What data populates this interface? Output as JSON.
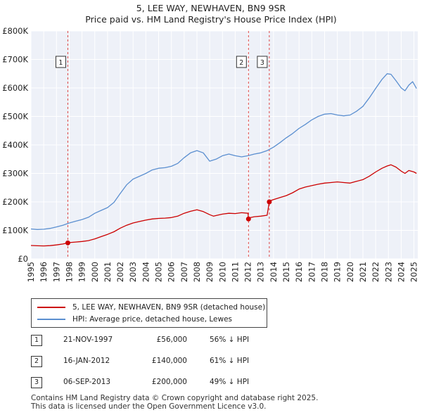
{
  "chart_data": {
    "type": "line",
    "title": "5, LEE WAY, NEWHAVEN, BN9 9SR",
    "subtitle": "Price paid vs. HM Land Registry's House Price Index (HPI)",
    "xlabel": "",
    "ylabel": "",
    "xlim": [
      1995,
      2025.3
    ],
    "ylim": [
      0,
      800000
    ],
    "y_ticks": [
      0,
      100000,
      200000,
      300000,
      400000,
      500000,
      600000,
      700000,
      800000
    ],
    "y_tick_labels": [
      "£0",
      "£100K",
      "£200K",
      "£300K",
      "£400K",
      "£500K",
      "£600K",
      "£700K",
      "£800K"
    ],
    "x_tick_labels": [
      "1995",
      "1996",
      "1997",
      "1998",
      "1999",
      "2000",
      "2001",
      "2002",
      "2003",
      "2004",
      "2005",
      "2006",
      "2007",
      "2008",
      "2009",
      "2010",
      "2011",
      "2012",
      "2013",
      "2014",
      "2015",
      "2016",
      "2017",
      "2018",
      "2019",
      "2020",
      "2021",
      "2022",
      "2023",
      "2024",
      "2025"
    ],
    "grid": true,
    "series": [
      {
        "name": "5, LEE WAY, NEWHAVEN, BN9 9SR (detached house)",
        "color": "#cc0000",
        "x": [
          1995.0,
          1995.5,
          1996.0,
          1996.5,
          1997.0,
          1997.5,
          1997.89,
          1998.0,
          1998.5,
          1999.0,
          1999.5,
          2000.0,
          2000.5,
          2001.0,
          2001.5,
          2002.0,
          2002.5,
          2003.0,
          2003.5,
          2004.0,
          2004.5,
          2005.0,
          2005.5,
          2006.0,
          2006.5,
          2007.0,
          2007.5,
          2008.0,
          2008.5,
          2009.0,
          2009.3,
          2009.6,
          2010.0,
          2010.5,
          2011.0,
          2011.5,
          2012.0,
          2012.04,
          2012.2,
          2012.5,
          2013.0,
          2013.5,
          2013.67,
          2013.8,
          2014.0,
          2014.5,
          2015.0,
          2015.5,
          2016.0,
          2016.5,
          2017.0,
          2017.5,
          2018.0,
          2018.5,
          2019.0,
          2019.5,
          2020.0,
          2020.5,
          2021.0,
          2021.5,
          2022.0,
          2022.5,
          2022.9,
          2023.2,
          2023.6,
          2024.0,
          2024.3,
          2024.6,
          2025.0,
          2025.2
        ],
        "values": [
          47000,
          46000,
          45500,
          46500,
          49000,
          52000,
          56000,
          57000,
          59000,
          61000,
          64000,
          70000,
          78000,
          86000,
          95000,
          108000,
          118000,
          126000,
          131000,
          136000,
          140000,
          142000,
          143000,
          145000,
          150000,
          160000,
          167000,
          172000,
          166000,
          155000,
          150000,
          153000,
          157000,
          160000,
          159000,
          162000,
          160000,
          140000,
          145000,
          148000,
          150000,
          153000,
          200000,
          205000,
          208000,
          215000,
          222000,
          232000,
          245000,
          252000,
          257000,
          262000,
          266000,
          268000,
          270000,
          268000,
          266000,
          272000,
          278000,
          290000,
          305000,
          318000,
          326000,
          330000,
          322000,
          308000,
          300000,
          310000,
          305000,
          300000
        ]
      },
      {
        "name": "HPI: Average price, detached house, Lewes",
        "color": "#5b8fd0",
        "x": [
          1995.0,
          1995.5,
          1996.0,
          1996.5,
          1997.0,
          1997.5,
          1998.0,
          1998.5,
          1999.0,
          1999.5,
          2000.0,
          2000.5,
          2001.0,
          2001.5,
          2002.0,
          2002.5,
          2003.0,
          2003.5,
          2004.0,
          2004.5,
          2005.0,
          2005.5,
          2006.0,
          2006.5,
          2007.0,
          2007.5,
          2008.0,
          2008.5,
          2009.0,
          2009.5,
          2010.0,
          2010.5,
          2011.0,
          2011.5,
          2012.0,
          2012.5,
          2013.0,
          2013.5,
          2014.0,
          2014.5,
          2015.0,
          2015.5,
          2016.0,
          2016.5,
          2017.0,
          2017.5,
          2018.0,
          2018.5,
          2019.0,
          2019.5,
          2020.0,
          2020.5,
          2021.0,
          2021.5,
          2022.0,
          2022.5,
          2022.9,
          2023.2,
          2023.6,
          2024.0,
          2024.3,
          2024.6,
          2024.9,
          2025.2
        ],
        "values": [
          105000,
          103000,
          104000,
          107000,
          112000,
          118000,
          126000,
          132000,
          138000,
          146000,
          160000,
          170000,
          180000,
          198000,
          230000,
          260000,
          280000,
          290000,
          300000,
          312000,
          318000,
          320000,
          325000,
          335000,
          355000,
          372000,
          380000,
          372000,
          343000,
          350000,
          362000,
          368000,
          362000,
          358000,
          362000,
          368000,
          372000,
          380000,
          392000,
          408000,
          425000,
          440000,
          458000,
          472000,
          488000,
          500000,
          508000,
          510000,
          505000,
          502000,
          505000,
          518000,
          535000,
          565000,
          598000,
          630000,
          650000,
          648000,
          625000,
          600000,
          590000,
          610000,
          622000,
          598000
        ]
      }
    ],
    "events": [
      {
        "label": "1",
        "x": 1997.89,
        "y": 56000
      },
      {
        "label": "2",
        "x": 2012.04,
        "y": 140000
      },
      {
        "label": "3",
        "x": 2013.67,
        "y": 200000
      }
    ]
  },
  "legend": {
    "items": [
      {
        "label": "5, LEE WAY, NEWHAVEN, BN9 9SR (detached house)",
        "color": "#cc0000"
      },
      {
        "label": "HPI: Average price, detached house, Lewes",
        "color": "#5b8fd0"
      }
    ]
  },
  "sales": [
    {
      "num": "1",
      "date": "21-NOV-1997",
      "price": "£56,000",
      "hpi": "56% ↓ HPI"
    },
    {
      "num": "2",
      "date": "16-JAN-2012",
      "price": "£140,000",
      "hpi": "61% ↓ HPI"
    },
    {
      "num": "3",
      "date": "06-SEP-2013",
      "price": "£200,000",
      "hpi": "49% ↓ HPI"
    }
  ],
  "footer": {
    "line1": "Contains HM Land Registry data © Crown copyright and database right 2025.",
    "line2": "This data is licensed under the Open Government Licence v3.0."
  }
}
